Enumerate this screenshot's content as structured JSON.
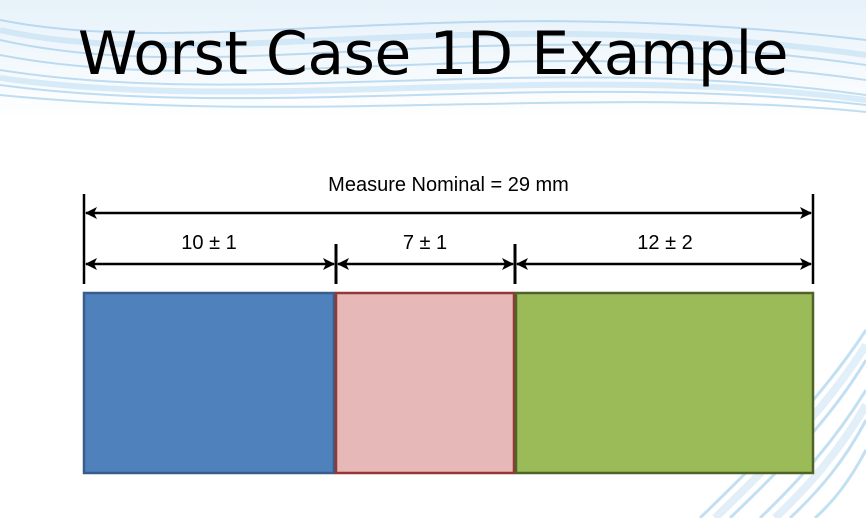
{
  "slide": {
    "title": "Worst Case 1D Example"
  },
  "dimensions": {
    "total_label": "Measure Nominal  = 29 mm",
    "segments": [
      {
        "label": "10 ± 1",
        "nominal": 10,
        "tolerance": 1,
        "fill": "#4F81BD",
        "stroke": "#385D8A"
      },
      {
        "label": "7 ± 1",
        "nominal": 7,
        "tolerance": 1,
        "fill": "#E6B9B8",
        "stroke": "#953735"
      },
      {
        "label": "12 ± 2",
        "nominal": 12,
        "tolerance": 2,
        "fill": "#9BBB59",
        "stroke": "#4F6228"
      }
    ]
  },
  "colors": {
    "arrow": "#000000",
    "background_swoosh": "#9CCBEA"
  }
}
